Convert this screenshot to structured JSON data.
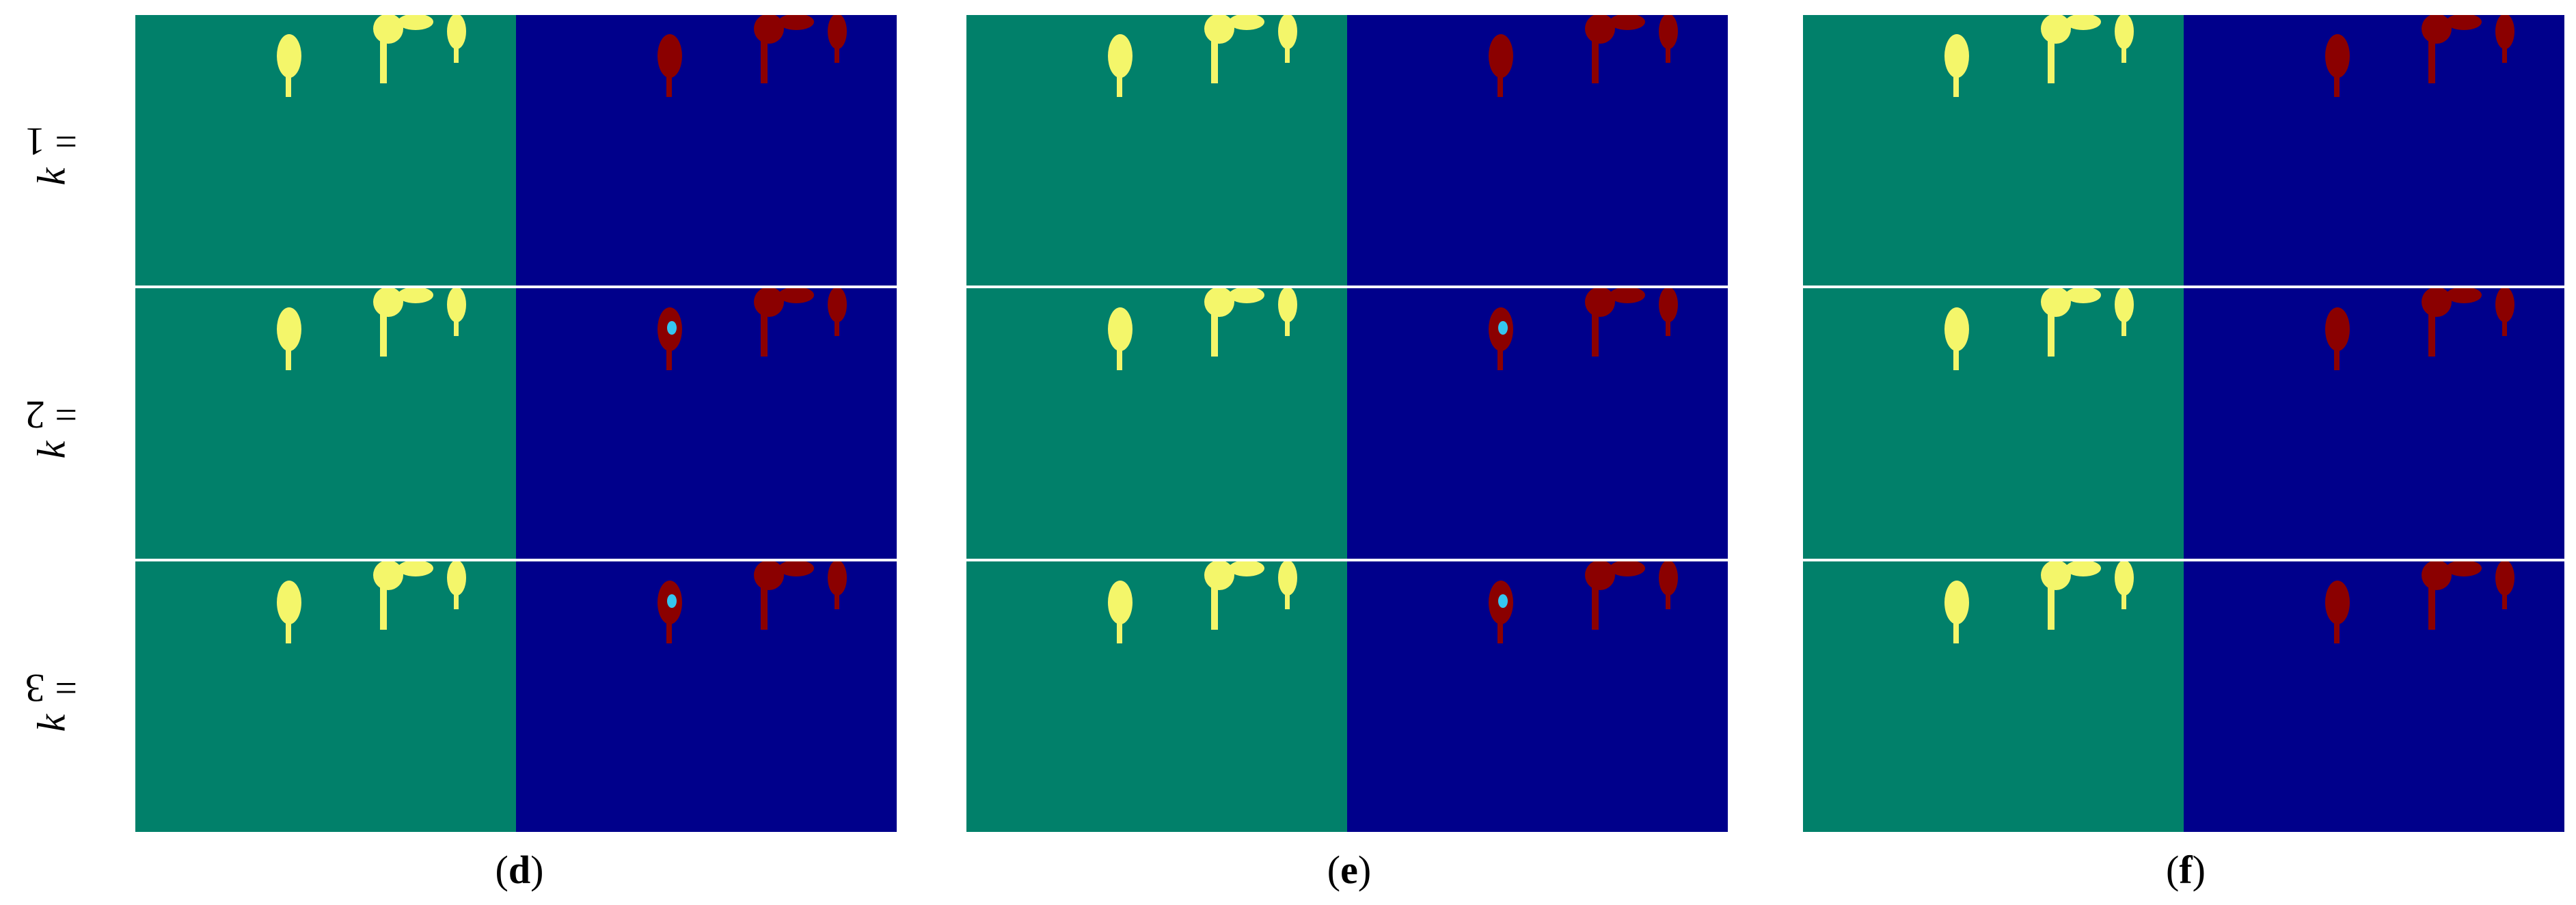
{
  "rows": [
    {
      "var": "k",
      "eq": " = 1"
    },
    {
      "var": "k",
      "eq": " = 2"
    },
    {
      "var": "k",
      "eq": " = 3"
    }
  ],
  "panels": [
    {
      "letter": "d"
    },
    {
      "letter": "e"
    },
    {
      "letter": "f"
    }
  ],
  "colors": {
    "left_background": "#01806a",
    "left_blob": "#f4f66a",
    "right_background": "#00008b",
    "right_blob": "#8b0000",
    "right_highlight": "#35c6f0",
    "divider": "#ffffff"
  }
}
